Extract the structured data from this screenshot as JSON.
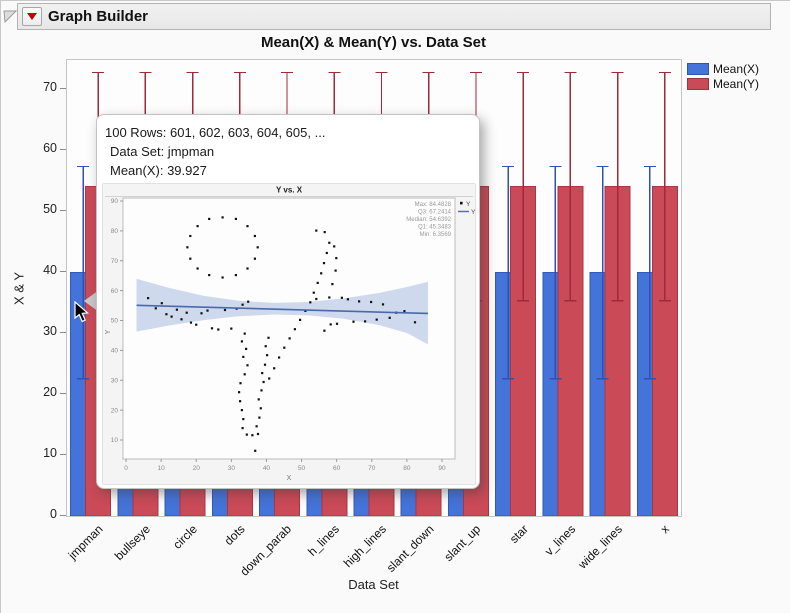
{
  "window": {
    "title": "Graph Builder",
    "disclosure_icon": "open-triangle",
    "menu_icon": "red-triangle"
  },
  "tooltip": {
    "lines": {
      "rows": "100 Rows:  601, 602, 603, 604, 605, ...",
      "dataset": "Data Set: jmpman",
      "mean": "Mean(X): 39.927"
    }
  },
  "chart_data": [
    {
      "type": "bar",
      "title": "Mean(X) & Mean(Y) vs. Data Set",
      "xlabel": "Data Set",
      "ylabel": "X & Y",
      "ylim": [
        0,
        74.75
      ],
      "yticks": [
        0,
        10,
        20,
        30,
        40,
        50,
        60,
        70
      ],
      "grid": false,
      "legend_position": "top-right",
      "categories": [
        "jmpman",
        "bullseye",
        "circle",
        "dots",
        "down_parab",
        "h_lines",
        "high_lines",
        "slant_down",
        "slant_up",
        "star",
        "v_lines",
        "wide_lines",
        "x"
      ],
      "series": [
        {
          "name": "Mean(X)",
          "color": "#4473d9",
          "stroke": "#3158bb",
          "error_color": "#2e52b4",
          "values": [
            39.927,
            39.93,
            39.93,
            39.93,
            39.93,
            39.93,
            39.93,
            39.93,
            39.93,
            39.93,
            39.93,
            39.93,
            39.93
          ],
          "error_low": 22.5,
          "error_high": 57.3
        },
        {
          "name": "Mean(Y)",
          "color": "#cb4a57",
          "stroke": "#aa3645",
          "error_color": "#9e2b3c",
          "values": [
            54.02,
            54.02,
            54.02,
            54.02,
            54.02,
            54.02,
            54.02,
            54.02,
            54.02,
            54.02,
            54.02,
            54.02,
            54.02
          ],
          "error_low": 35.3,
          "error_high": 72.7
        }
      ]
    },
    {
      "type": "scatter",
      "title": "Y vs. X",
      "xlabel": "X",
      "ylabel": "Y",
      "xlim": [
        -1,
        94
      ],
      "ylim": [
        3.5,
        91
      ],
      "xticks": [
        0,
        10,
        20,
        30,
        40,
        50,
        60,
        70,
        80,
        90
      ],
      "yticks": [
        10,
        20,
        30,
        40,
        50,
        60,
        70,
        80,
        90
      ],
      "stats": [
        "Max: 84.4828",
        "Q3: 67.2414",
        "Median: 54.6392",
        "Q1: 45.3483",
        "Min: 6.3569"
      ],
      "legend": [
        {
          "label": "Y",
          "marker": "point",
          "color": "#111111"
        },
        {
          "label": "Y",
          "marker": "line",
          "color": "#5572b5"
        }
      ],
      "point_color": "#111111",
      "fit_line_color": "#4a69ad",
      "band_color": "#c3cfe8",
      "fit_line": [
        [
          3,
          55.1
        ],
        [
          86,
          52.35
        ]
      ],
      "band_top": [
        [
          3,
          64
        ],
        [
          12,
          61
        ],
        [
          22,
          58.3
        ],
        [
          32,
          56.6
        ],
        [
          42,
          55.9
        ],
        [
          52,
          56.2
        ],
        [
          62,
          57.4
        ],
        [
          72,
          59.2
        ],
        [
          80,
          61.2
        ],
        [
          86,
          63
        ]
      ],
      "band_bottom": [
        [
          3,
          46.3
        ],
        [
          12,
          48.3
        ],
        [
          22,
          50.1
        ],
        [
          32,
          51.4
        ],
        [
          42,
          52
        ],
        [
          52,
          51.7
        ],
        [
          62,
          50.6
        ],
        [
          72,
          48.5
        ],
        [
          80,
          45.8
        ],
        [
          86,
          42
        ]
      ],
      "points": [
        [
          37.5,
          74.5
        ],
        [
          36.7,
          78.3
        ],
        [
          34.6,
          81.6
        ],
        [
          31.3,
          84
        ],
        [
          27.5,
          84.5
        ],
        [
          23.7,
          84
        ],
        [
          20.4,
          81.6
        ],
        [
          18.3,
          78.3
        ],
        [
          17.5,
          74.5
        ],
        [
          18.3,
          70.7
        ],
        [
          20.4,
          67.4
        ],
        [
          23.7,
          65.2
        ],
        [
          27.5,
          64.4
        ],
        [
          31.3,
          65.2
        ],
        [
          34.6,
          67.4
        ],
        [
          36.7,
          70.7
        ],
        [
          6.3,
          57.5
        ],
        [
          8.5,
          54.1
        ],
        [
          10.2,
          55.8
        ],
        [
          11.5,
          52.1
        ],
        [
          13,
          51.3
        ],
        [
          14.5,
          53.6
        ],
        [
          15.8,
          50.4
        ],
        [
          17.3,
          52.6
        ],
        [
          18.5,
          49.3
        ],
        [
          20,
          48.6
        ],
        [
          21.5,
          52.4
        ],
        [
          23.2,
          53.3
        ],
        [
          24.5,
          47.4
        ],
        [
          26.3,
          47
        ],
        [
          28.2,
          53.5
        ],
        [
          30,
          47.3
        ],
        [
          31.5,
          54
        ],
        [
          33.2,
          55.3
        ],
        [
          34.8,
          56.3
        ],
        [
          52.5,
          56.1
        ],
        [
          54.2,
          57.2
        ],
        [
          56.5,
          46.6
        ],
        [
          58.3,
          48.7
        ],
        [
          60.1,
          48.9
        ],
        [
          61.5,
          57.6
        ],
        [
          63.2,
          57.1
        ],
        [
          64.8,
          49.6
        ],
        [
          66.4,
          56.4
        ],
        [
          68.1,
          49.7
        ],
        [
          69.8,
          56.2
        ],
        [
          71.4,
          50.3
        ],
        [
          73.2,
          55.4
        ],
        [
          75.1,
          50.9
        ],
        [
          77,
          52.6
        ],
        [
          79.3,
          53.1
        ],
        [
          82.3,
          49.4
        ],
        [
          33.8,
          45.6
        ],
        [
          33,
          43
        ],
        [
          34.2,
          40.5
        ],
        [
          33.4,
          37.8
        ],
        [
          34.6,
          35
        ],
        [
          33.8,
          32
        ],
        [
          32.6,
          29
        ],
        [
          32.2,
          26
        ],
        [
          32.5,
          23
        ],
        [
          33,
          20
        ],
        [
          33.4,
          17
        ],
        [
          33.2,
          14
        ],
        [
          34.4,
          11.8
        ],
        [
          36,
          11.6
        ],
        [
          36.8,
          6.4
        ],
        [
          37.6,
          12
        ],
        [
          37.2,
          14.6
        ],
        [
          38,
          17.5
        ],
        [
          38.4,
          20.6
        ],
        [
          37.8,
          23.6
        ],
        [
          38.6,
          26.6
        ],
        [
          39.2,
          29.4
        ],
        [
          38.8,
          32.4
        ],
        [
          39.6,
          35.2
        ],
        [
          40.2,
          38.4
        ],
        [
          39.8,
          41.4
        ],
        [
          40.6,
          44.2
        ],
        [
          40.8,
          30.6
        ],
        [
          42.2,
          34
        ],
        [
          43.6,
          37.6
        ],
        [
          45.1,
          40.9
        ],
        [
          46.6,
          44
        ],
        [
          48.1,
          47.1
        ],
        [
          49.6,
          50.2
        ],
        [
          51.1,
          53.2
        ],
        [
          53.5,
          59.3
        ],
        [
          54.6,
          62.6
        ],
        [
          55.6,
          65.8
        ],
        [
          56.4,
          69.2
        ],
        [
          57.2,
          72.6
        ],
        [
          57.9,
          76
        ],
        [
          54.2,
          80.1
        ],
        [
          56.6,
          79.6
        ],
        [
          59.3,
          74.8
        ],
        [
          59.9,
          70.9
        ],
        [
          59.7,
          66.7
        ],
        [
          58.8,
          62.2
        ],
        [
          57.9,
          57.7
        ]
      ]
    }
  ]
}
